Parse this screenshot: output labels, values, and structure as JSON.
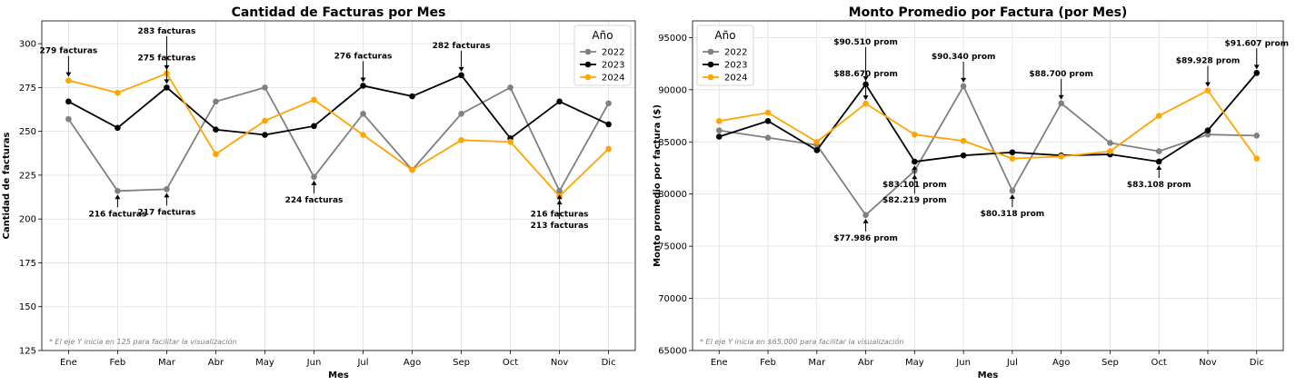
{
  "chart_data": [
    {
      "type": "line",
      "title": "Cantidad de Facturas por Mes",
      "xlabel": "Mes",
      "ylabel": "Cantidad de facturas",
      "categories": [
        "Ene",
        "Feb",
        "Mar",
        "Abr",
        "May",
        "Jun",
        "Jul",
        "Ago",
        "Sep",
        "Oct",
        "Nov",
        "Dic"
      ],
      "ylim": [
        125,
        313
      ],
      "yticks": [
        125,
        150,
        175,
        200,
        225,
        250,
        275,
        300
      ],
      "grid": true,
      "legend_title": "Año",
      "legend_position": "upper right",
      "note": "* El eje Y inicia en 125 para facilitar la visualización",
      "series": [
        {
          "name": "2022",
          "color": "#808080",
          "values": [
            257,
            216,
            217,
            267,
            275,
            224,
            260,
            228,
            260,
            275,
            216,
            266
          ]
        },
        {
          "name": "2023",
          "color": "#000000",
          "values": [
            267,
            252,
            275,
            251,
            248,
            253,
            276,
            270,
            282,
            246,
            267,
            254
          ]
        },
        {
          "name": "2024",
          "color": "#FFA500",
          "values": [
            279,
            272,
            283,
            237,
            256,
            268,
            248,
            228,
            245,
            244,
            213,
            240
          ]
        }
      ],
      "annotations": [
        {
          "text": "279 facturas",
          "x": 0,
          "y": 279,
          "dir": "down"
        },
        {
          "text": "216 facturas",
          "x": 1,
          "y": 216,
          "dir": "up"
        },
        {
          "text": "283 facturas",
          "x": 2,
          "y": 283,
          "dir": "down",
          "offset": 2
        },
        {
          "text": "275 facturas",
          "x": 2,
          "y": 275,
          "dir": "down"
        },
        {
          "text": "217 facturas",
          "x": 2,
          "y": 217,
          "dir": "up"
        },
        {
          "text": "224 facturas",
          "x": 5,
          "y": 224,
          "dir": "up"
        },
        {
          "text": "276 facturas",
          "x": 6,
          "y": 276,
          "dir": "down"
        },
        {
          "text": "282 facturas",
          "x": 8,
          "y": 282,
          "dir": "down"
        },
        {
          "text": "216 facturas",
          "x": 10,
          "y": 216,
          "dir": "up"
        },
        {
          "text": "213 facturas",
          "x": 10,
          "y": 213,
          "dir": "up",
          "offset": 1
        }
      ]
    },
    {
      "type": "line",
      "title": "Monto Promedio por Factura (por Mes)",
      "xlabel": "Mes",
      "ylabel": "Monto promedio por factura ($)",
      "categories": [
        "Ene",
        "Feb",
        "Mar",
        "Abr",
        "May",
        "Jun",
        "Jul",
        "Ago",
        "Sep",
        "Oct",
        "Nov",
        "Dic"
      ],
      "ylim": [
        65000,
        96600
      ],
      "yticks": [
        65000,
        70000,
        75000,
        80000,
        85000,
        90000,
        95000
      ],
      "grid": true,
      "legend_title": "Año",
      "legend_position": "upper left",
      "note": "* El eje Y inicia en $65.000 para facilitar la visualización",
      "series": [
        {
          "name": "2022",
          "color": "#808080",
          "values": [
            86100,
            85400,
            84700,
            77986,
            82219,
            90340,
            80318,
            88700,
            84900,
            84100,
            85700,
            85600
          ]
        },
        {
          "name": "2023",
          "color": "#000000",
          "values": [
            85500,
            87000,
            84200,
            90510,
            83101,
            83700,
            84000,
            83700,
            83800,
            83108,
            86100,
            91607
          ]
        },
        {
          "name": "2024",
          "color": "#FFA500",
          "values": [
            87000,
            87800,
            85000,
            88670,
            85700,
            85100,
            83400,
            83600,
            84100,
            87500,
            89928,
            83400
          ]
        }
      ],
      "annotations": [
        {
          "text": "$90.510 prom",
          "x": 3,
          "y": 90510,
          "dir": "down",
          "offset": 2
        },
        {
          "text": "$88.670 prom",
          "x": 3,
          "y": 88670,
          "dir": "down"
        },
        {
          "text": "$77.986 prom",
          "x": 3,
          "y": 77986,
          "dir": "up"
        },
        {
          "text": "$83.101 prom",
          "x": 4,
          "y": 83101,
          "dir": "up"
        },
        {
          "text": "$82.219 prom",
          "x": 4,
          "y": 82219,
          "dir": "up",
          "offset": 1
        },
        {
          "text": "$90.340 prom",
          "x": 5,
          "y": 90340,
          "dir": "down"
        },
        {
          "text": "$80.318 prom",
          "x": 6,
          "y": 80318,
          "dir": "up"
        },
        {
          "text": "$88.700 prom",
          "x": 7,
          "y": 88700,
          "dir": "down"
        },
        {
          "text": "$83.108 prom",
          "x": 9,
          "y": 83108,
          "dir": "up"
        },
        {
          "text": "$89.928 prom",
          "x": 10,
          "y": 89928,
          "dir": "down"
        },
        {
          "text": "$91.607 prom",
          "x": 11,
          "y": 91607,
          "dir": "down"
        }
      ]
    }
  ]
}
